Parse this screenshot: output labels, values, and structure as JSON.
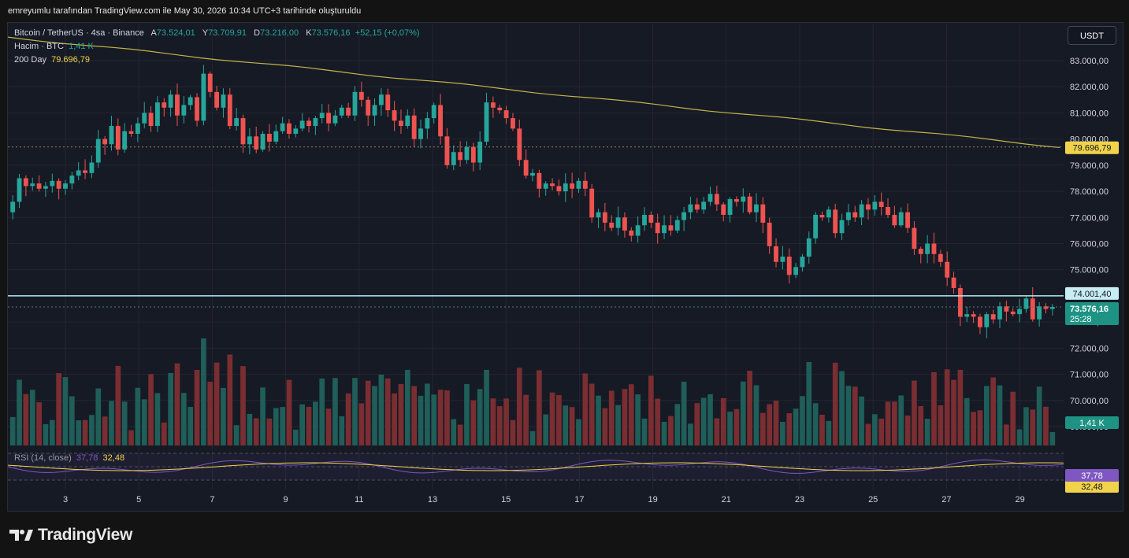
{
  "attribution": "emreyumlu tarafından TradingView.com ile May 30, 2026 10:34 UTC+3 tarihinde oluşturuldu",
  "brand": "TradingView",
  "currency_button": "USDT",
  "legend": {
    "symbol": "Bitcoin / TetherUS · 4sa · Binance",
    "open_label": "A",
    "open": "73.524,01",
    "high_label": "Y",
    "high": "73.709,91",
    "low_label": "D",
    "low": "73.216,00",
    "close_label": "K",
    "close": "73.576,16",
    "change": "+52,15 (+0,07%)",
    "volume_label": "Hacim · BTC",
    "volume": "1,41 K",
    "ma_label": "200 Day",
    "ma": "79.696,79"
  },
  "rsi_legend": {
    "label": "RSI (14, close)",
    "rsi": "37,78",
    "ma": "32,48"
  },
  "badges": {
    "ma": "79.696,79",
    "hline": "74.001,40",
    "price": "73.576,16",
    "countdown": "25:28",
    "volume": "1,41 K",
    "rsi": "37,78",
    "rsi_ma": "32,48"
  },
  "colors": {
    "up": "#26a69a",
    "down": "#ef5350",
    "ma": "#c5b449",
    "hline": "#b2ebf2",
    "rsi": "#7e57c2",
    "rsi_ma": "#f0d34a"
  },
  "chart_data": {
    "type": "candlestick",
    "y_axis_ticks": [
      "83.000,00",
      "82.000,00",
      "81.000,00",
      "80.000,00",
      "79.000,00",
      "78.000,00",
      "77.000,00",
      "76.000,00",
      "75.000,00",
      "74.000,00",
      "73.000,00",
      "72.000,00",
      "71.000,00",
      "70.000,00",
      "69.000,00"
    ],
    "x_axis_ticks": [
      "3",
      "5",
      "7",
      "9",
      "11",
      "13",
      "15",
      "17",
      "19",
      "21",
      "23",
      "25",
      "27",
      "29"
    ],
    "y_range": [
      68900,
      83500
    ],
    "candles_close": [
      77600,
      78500,
      78200,
      78300,
      78100,
      78200,
      78400,
      78100,
      78300,
      78600,
      78800,
      78700,
      79100,
      80000,
      79800,
      80500,
      79600,
      80300,
      80200,
      80600,
      81000,
      80500,
      81400,
      81200,
      81700,
      80900,
      81300,
      81600,
      80700,
      82500,
      81800,
      81200,
      81700,
      80500,
      80800,
      79800,
      80100,
      79600,
      80200,
      79900,
      80300,
      80600,
      80200,
      80400,
      80700,
      80500,
      80800,
      81000,
      80600,
      80900,
      81200,
      80900,
      81800,
      81500,
      80900,
      81300,
      81700,
      81100,
      80700,
      80500,
      80900,
      80000,
      80400,
      80800,
      81300,
      80100,
      79000,
      79500,
      79200,
      79700,
      79100,
      79900,
      81400,
      81200,
      81100,
      80800,
      80400,
      79200,
      78600,
      78700,
      78100,
      78300,
      78200,
      78000,
      78300,
      78100,
      78400,
      78100,
      77000,
      77200,
      76800,
      76600,
      77000,
      76500,
      76300,
      76700,
      77100,
      76800,
      76400,
      76700,
      76500,
      76900,
      77200,
      77500,
      77300,
      77600,
      77900,
      77500,
      77100,
      77700,
      77600,
      77800,
      77200,
      77500,
      76800,
      75900,
      75300,
      75500,
      74800,
      75100,
      75500,
      76200,
      77100,
      77000,
      77300,
      76400,
      76900,
      77200,
      77000,
      77500,
      77300,
      77600,
      77400,
      77100,
      76700,
      77200,
      76600,
      75800,
      75600,
      76000,
      75600,
      75300,
      74700,
      74300,
      73200,
      73300,
      73200,
      72800,
      73300,
      73100,
      73600,
      73400,
      73300,
      73500,
      73900,
      73100,
      73600,
      73500,
      73576
    ]
  }
}
